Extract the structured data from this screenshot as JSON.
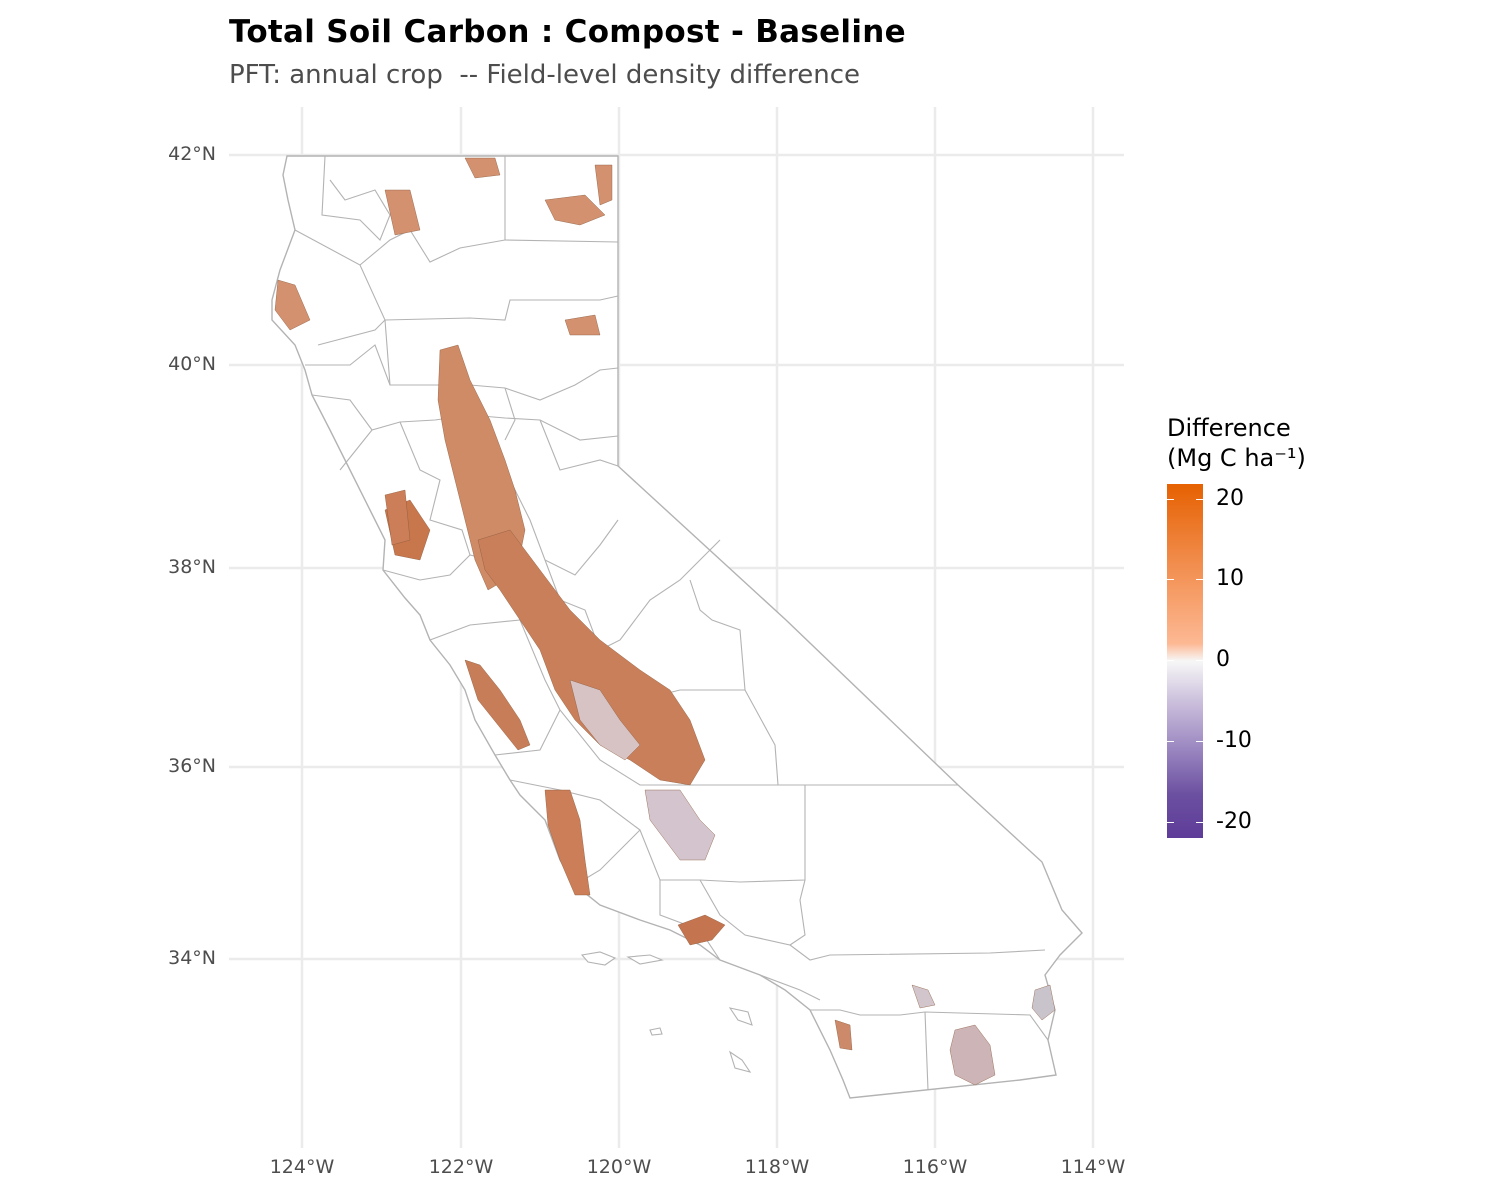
{
  "title": "Total Soil Carbon : Compost - Baseline",
  "subtitle": "PFT: annual crop  -- Field-level density difference",
  "axes": {
    "y_ticks": [
      "42°N",
      "40°N",
      "38°N",
      "36°N",
      "34°N"
    ],
    "x_ticks": [
      "124°W",
      "122°W",
      "120°W",
      "118°W",
      "116°W",
      "114°W"
    ],
    "grid": true
  },
  "legend": {
    "title_line1": "Difference",
    "title_line2": "(Mg C ha⁻¹)",
    "ticks": [
      "20",
      "10",
      "0",
      "-10",
      "-20"
    ],
    "tick_values": [
      20,
      10,
      0,
      -10,
      -20
    ],
    "range": [
      -22,
      22
    ],
    "colors": {
      "high": "#e66101",
      "mid": "#f7f7f7",
      "low": "#5e3c99"
    }
  },
  "map": {
    "region": "California counties",
    "boundary_color": "#b3b3b3",
    "field_color_positive": "#d9825a",
    "field_color_negative": "#b8a8c8"
  }
}
